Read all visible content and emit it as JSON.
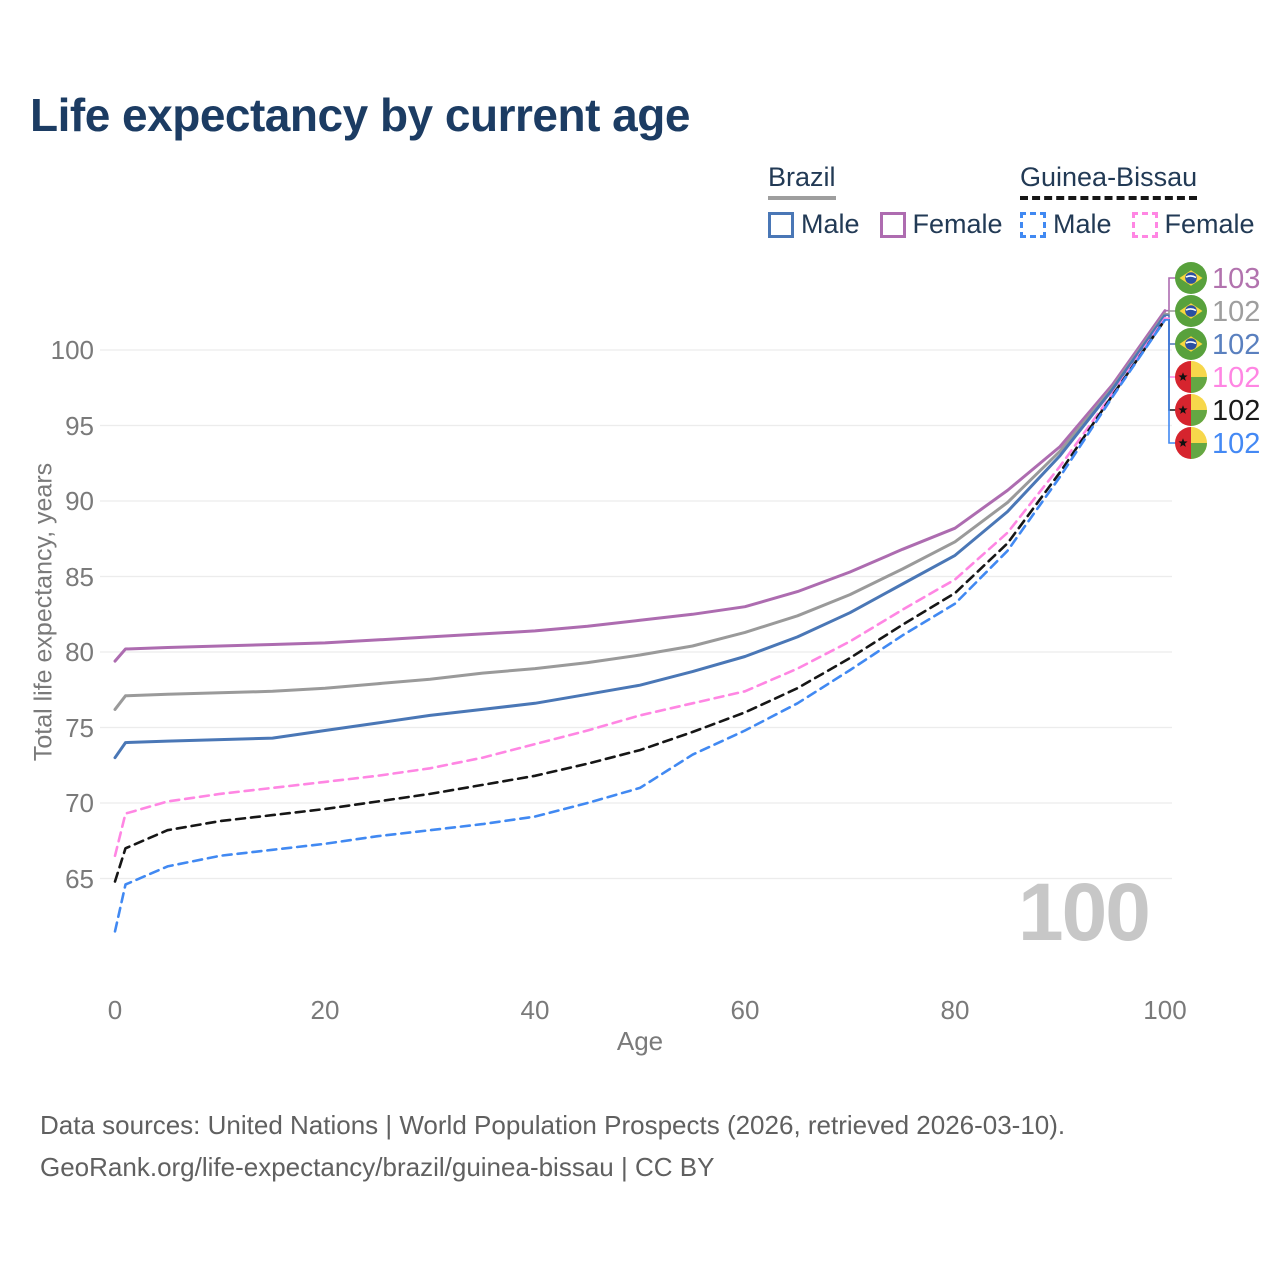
{
  "title": "Life expectancy by current age",
  "legend": {
    "groups": [
      {
        "label": "Brazil",
        "underline_color": "#9e9e9e",
        "underline_style": "solid",
        "items": [
          {
            "label": "Male",
            "color": "#4a77b6",
            "dashed": false
          },
          {
            "label": "Female",
            "color": "#ae6cb0",
            "dashed": false
          }
        ]
      },
      {
        "label": "Guinea-Bissau",
        "underline_color": "#161616",
        "underline_style": "dashed",
        "items": [
          {
            "label": "Male",
            "color": "#4189f2",
            "dashed": true
          },
          {
            "label": "Female",
            "color": "#ff86e3",
            "dashed": true
          }
        ]
      }
    ]
  },
  "axes": {
    "x_label": "Age",
    "y_label": "Total life expectancy, years",
    "x_ticks": [
      0,
      20,
      40,
      60,
      80,
      100
    ],
    "y_ticks": [
      65,
      70,
      75,
      80,
      85,
      90,
      95,
      100
    ]
  },
  "watermark": "100",
  "footer": {
    "line1": "Data sources: United Nations | World Population Prospects (2026, retrieved 2026-03-10).",
    "line2": "GeoRank.org/life-expectancy/brazil/guinea-bissau | CC BY"
  },
  "chart_data": {
    "type": "line",
    "title": "Life expectancy by current age",
    "xlabel": "Age",
    "ylabel": "Total life expectancy, years",
    "xlim": [
      0,
      100
    ],
    "ylim": [
      61,
      104
    ],
    "grid": "horizontal",
    "x": [
      0,
      1,
      5,
      10,
      15,
      20,
      25,
      30,
      35,
      40,
      45,
      50,
      55,
      60,
      65,
      70,
      75,
      80,
      85,
      90,
      95,
      100
    ],
    "series": [
      {
        "name": "Brazil Female",
        "country": "Brazil",
        "sex": "Female",
        "color": "#ad6cb0",
        "dashed": false,
        "end_label": "103",
        "label_color": "#b273ae",
        "flag": "brazil",
        "values": [
          79.4,
          80.2,
          80.3,
          80.4,
          80.5,
          80.6,
          80.8,
          81.0,
          81.2,
          81.4,
          81.7,
          82.1,
          82.5,
          83.0,
          84.0,
          85.3,
          86.8,
          88.2,
          90.7,
          93.6,
          97.7,
          102.6
        ]
      },
      {
        "name": "Brazil Both sexes",
        "country": "Brazil",
        "sex": "Both",
        "color": "#9a9a9a",
        "dashed": false,
        "end_label": "102",
        "label_color": "#9e9e9e",
        "flag": "brazil",
        "values": [
          76.2,
          77.1,
          77.2,
          77.3,
          77.4,
          77.6,
          77.9,
          78.2,
          78.6,
          78.9,
          79.3,
          79.8,
          80.4,
          81.3,
          82.4,
          83.8,
          85.5,
          87.3,
          89.9,
          93.3,
          97.5,
          102.4
        ]
      },
      {
        "name": "Brazil Male",
        "country": "Brazil",
        "sex": "Male",
        "color": "#4a77b6",
        "dashed": false,
        "end_label": "102",
        "label_color": "#5a80bf",
        "flag": "brazil",
        "values": [
          73.0,
          74.0,
          74.1,
          74.2,
          74.3,
          74.8,
          75.3,
          75.8,
          76.2,
          76.6,
          77.2,
          77.8,
          78.7,
          79.7,
          81.0,
          82.6,
          84.5,
          86.4,
          89.3,
          93.0,
          97.4,
          102.3
        ]
      },
      {
        "name": "Guinea-Bissau Female",
        "country": "Guinea-Bissau",
        "sex": "Female",
        "color": "#ff86e3",
        "dashed": true,
        "end_label": "102",
        "label_color": "#ff86e3",
        "flag": "guinea-bissau",
        "values": [
          66.5,
          69.3,
          70.1,
          70.6,
          71.0,
          71.4,
          71.8,
          72.3,
          73.0,
          73.9,
          74.8,
          75.8,
          76.6,
          77.4,
          78.9,
          80.7,
          82.8,
          84.8,
          87.9,
          92.3,
          97.1,
          102.1
        ]
      },
      {
        "name": "Guinea-Bissau Both sexes",
        "country": "Guinea-Bissau",
        "sex": "Both",
        "color": "#161616",
        "dashed": true,
        "end_label": "102",
        "label_color": "#1a1a1a",
        "flag": "guinea-bissau",
        "values": [
          64.8,
          67.0,
          68.2,
          68.8,
          69.2,
          69.6,
          70.1,
          70.6,
          71.2,
          71.8,
          72.6,
          73.5,
          74.7,
          76.0,
          77.6,
          79.6,
          81.8,
          83.9,
          87.2,
          91.9,
          97.0,
          102.0
        ]
      },
      {
        "name": "Guinea-Bissau Male",
        "country": "Guinea-Bissau",
        "sex": "Male",
        "color": "#4189f2",
        "dashed": true,
        "end_label": "102",
        "label_color": "#4489f4",
        "flag": "guinea-bissau",
        "values": [
          61.5,
          64.6,
          65.8,
          66.5,
          66.9,
          67.3,
          67.8,
          68.2,
          68.6,
          69.1,
          70.0,
          71.0,
          73.2,
          74.8,
          76.6,
          78.8,
          81.1,
          83.2,
          86.7,
          91.6,
          96.9,
          102.0
        ]
      }
    ]
  }
}
